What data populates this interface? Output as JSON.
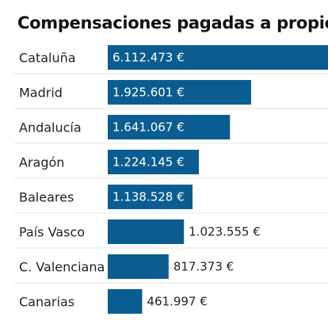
{
  "chart_data": {
    "type": "bar",
    "orientation": "horizontal",
    "title": "Compensaciones pagadas a propie",
    "categories": [
      "Cataluña",
      "Madrid",
      "Andalucía",
      "Aragón",
      "Baleares",
      "País Vasco",
      "C. Valenciana",
      "Canarias"
    ],
    "values": [
      6112473,
      1925601,
      1641067,
      1224145,
      1138528,
      1023555,
      817373,
      461997
    ],
    "value_labels": [
      "6.112.473 €",
      "1.925.601 €",
      "1.641.067 €",
      "1.224.145 €",
      "1.138.528 €",
      "1.023.555 €",
      "817.373 €",
      "461.997 €"
    ],
    "colors": {
      "bar": "#0b5d91",
      "divider": "#e4e4e4"
    },
    "grid": false,
    "legend": "none"
  }
}
